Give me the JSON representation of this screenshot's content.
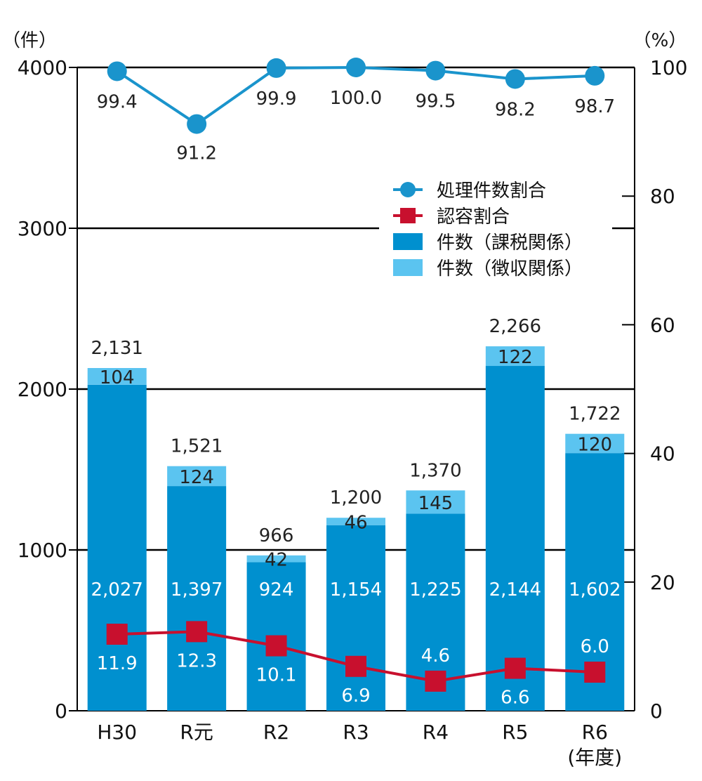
{
  "chart_data": {
    "type": "bar",
    "stacked": true,
    "categories": [
      "H30",
      "R元",
      "R2",
      "R3",
      "R4",
      "R5",
      "R6"
    ],
    "category_suffix_last": "(年度)",
    "series": [
      {
        "name": "件数（課税関係）",
        "axis": "left",
        "type": "bar",
        "color": "#0090CF",
        "values": [
          2027,
          1397,
          924,
          1154,
          1225,
          2144,
          1602
        ],
        "labels": [
          "2,027",
          "1,397",
          "924",
          "1,154",
          "1,225",
          "2,144",
          "1,602"
        ]
      },
      {
        "name": "件数（徴収関係）",
        "axis": "left",
        "type": "bar",
        "color": "#5BC4F0",
        "values": [
          104,
          124,
          42,
          46,
          145,
          122,
          120
        ],
        "labels": [
          "104",
          "124",
          "42",
          "46",
          "145",
          "122",
          "120"
        ]
      },
      {
        "name": "処理件数割合",
        "axis": "right",
        "type": "line",
        "color": "#1A94CC",
        "values": [
          99.4,
          91.2,
          99.9,
          100.0,
          99.5,
          98.2,
          98.7
        ],
        "labels": [
          "99.4",
          "91.2",
          "99.9",
          "100.0",
          "99.5",
          "98.2",
          "98.7"
        ]
      },
      {
        "name": "認容割合",
        "axis": "right",
        "type": "line",
        "color": "#C8102E",
        "values": [
          11.9,
          12.3,
          10.1,
          6.9,
          4.6,
          6.6,
          6.0
        ],
        "labels": [
          "11.9",
          "12.3",
          "10.1",
          "6.9",
          "4.6",
          "6.6",
          "6.0"
        ]
      }
    ],
    "totals": [
      "2,131",
      "1,521",
      "966",
      "1,200",
      "1,370",
      "2,266",
      "1,722"
    ],
    "y_left": {
      "unit": "（件）",
      "ylim": [
        0,
        4000
      ],
      "ticks": [
        0,
        1000,
        2000,
        3000,
        4000
      ]
    },
    "y_right": {
      "unit": "（%）",
      "ylim": [
        0,
        100
      ],
      "ticks": [
        0,
        20,
        40,
        60,
        80,
        100
      ]
    },
    "legend_order": [
      "処理件数割合",
      "認容割合",
      "件数（課税関係）",
      "件数（徴収関係）"
    ],
    "legend_position": "upper-right",
    "grid": "horizontal"
  }
}
